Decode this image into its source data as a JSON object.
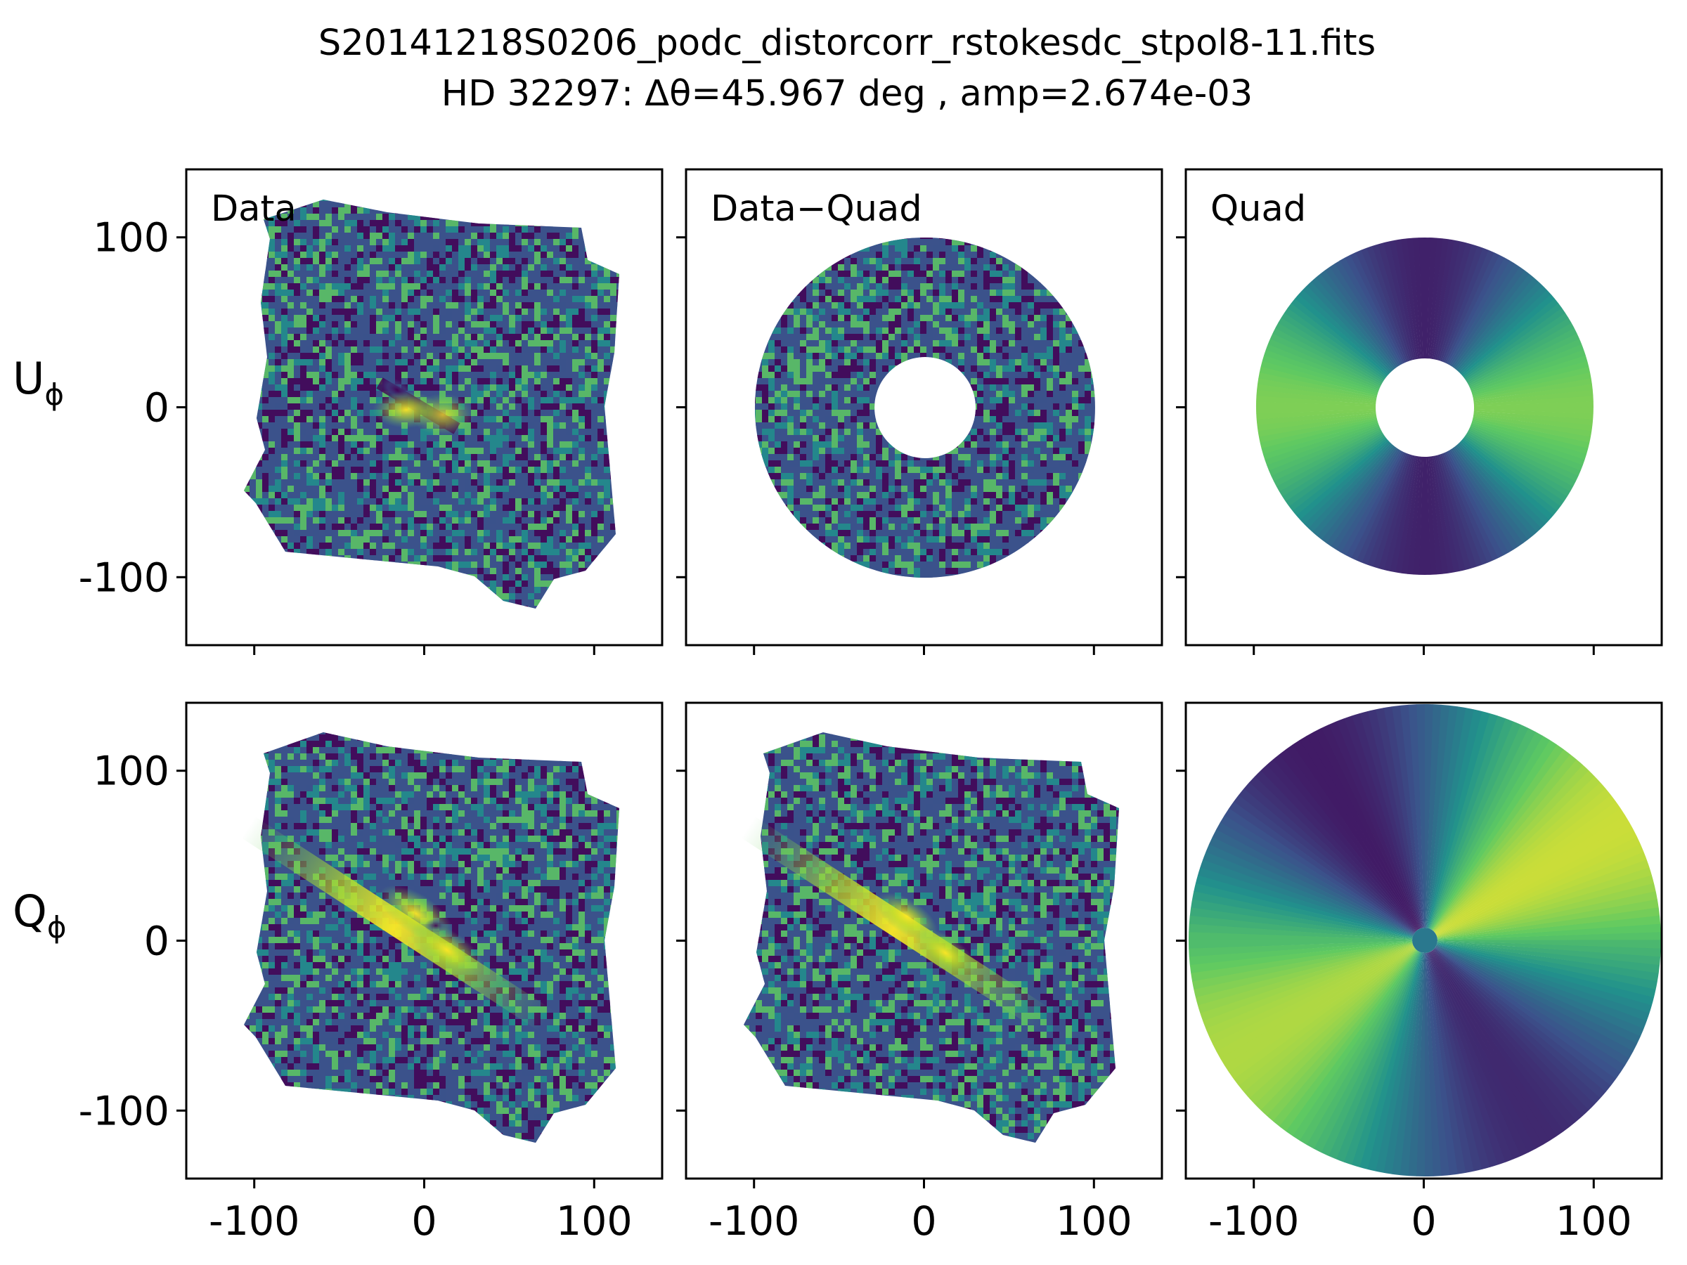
{
  "title_line1": "S20141218S0206_podc_distorcorr_rstokesdc_stpol8-11.fits",
  "title_line2": "HD 32297: Δθ=45.967 deg , amp=2.674e-03",
  "colors": {
    "cmap_low": "#440154",
    "cmap_mid_low": "#3b528b",
    "cmap_mid": "#21918c",
    "cmap_mid_high": "#5ec962",
    "cmap_high": "#fde725"
  },
  "chart_data": {
    "type": "heatmap",
    "colormap": "viridis",
    "layout": "2 rows x 3 columns, shared axes",
    "xlim": [
      -140,
      140
    ],
    "ylim": [
      -140,
      140
    ],
    "xticks": [
      -100,
      0,
      100
    ],
    "yticks": [
      -100,
      0,
      100
    ],
    "xtick_labels": [
      "-100",
      "0",
      "100"
    ],
    "ytick_labels": [
      "100",
      "0",
      "-100"
    ],
    "rows": [
      {
        "label": "U",
        "subscript": "ϕ"
      },
      {
        "label": "Q",
        "subscript": "ϕ"
      }
    ],
    "columns": [
      "Data",
      "Data−Quad",
      "Quad"
    ],
    "panels": [
      {
        "row": 0,
        "col": 0,
        "label": "Data",
        "content": "noisy square field with faint cross pattern"
      },
      {
        "row": 0,
        "col": 1,
        "label": "Data−Quad",
        "content": "annulus of residual noise, inner radius ~30, outer radius ~100"
      },
      {
        "row": 0,
        "col": 2,
        "label": "Quad",
        "content": "quadrupole model annulus, inner radius ~30, outer radius ~100"
      },
      {
        "row": 1,
        "col": 0,
        "label": "",
        "content": "noisy square field with bright diagonal disk"
      },
      {
        "row": 1,
        "col": 1,
        "label": "",
        "content": "noisy square field with bright diagonal disk"
      },
      {
        "row": 1,
        "col": 2,
        "label": "",
        "content": "quadrupole model disk, radius ~140, central hole ~8"
      }
    ]
  }
}
